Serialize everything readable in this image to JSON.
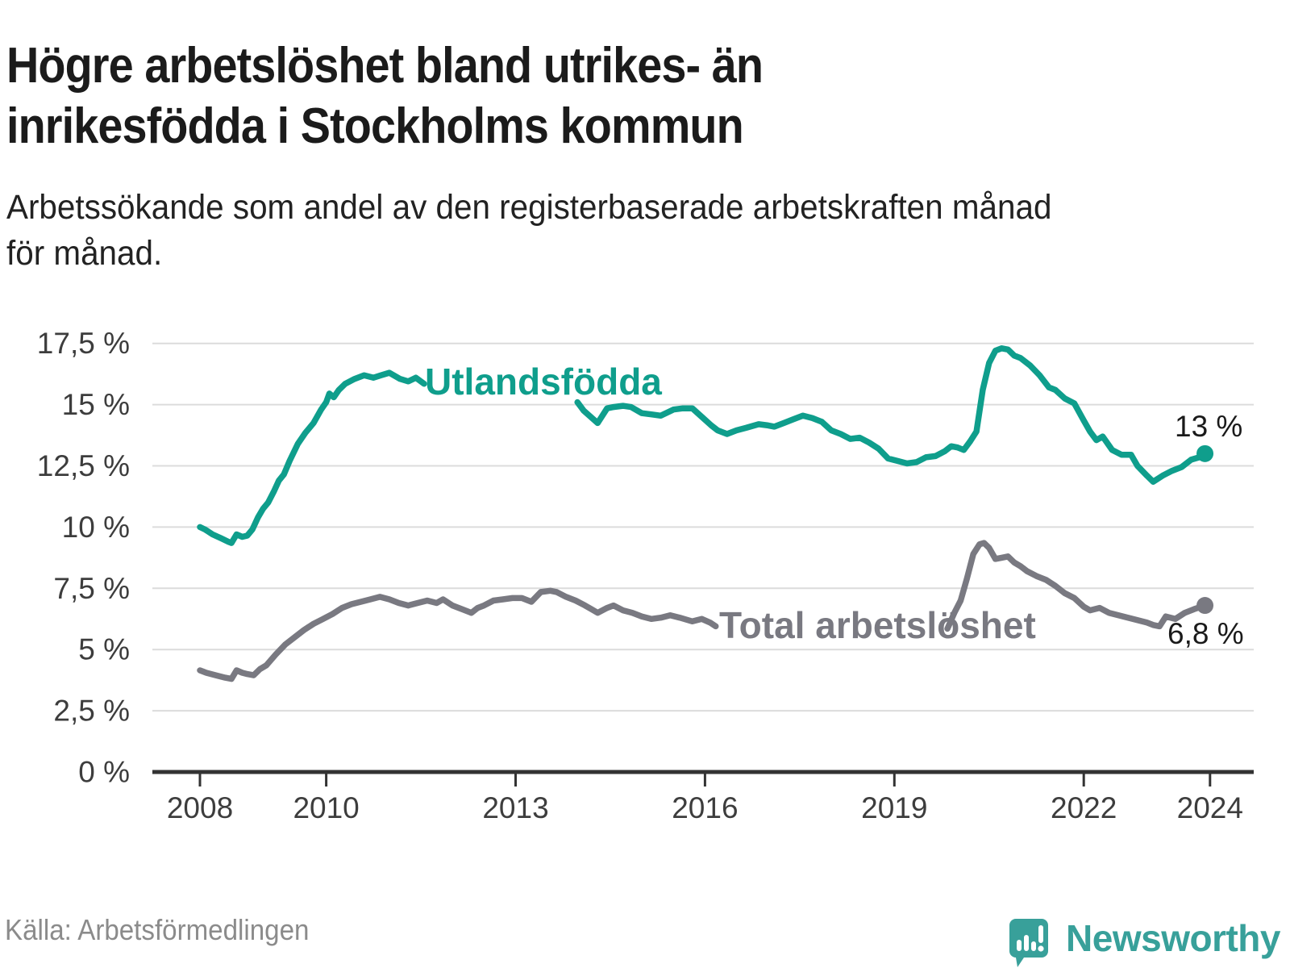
{
  "title": {
    "lines": [
      "Högre arbetslöshet bland utrikes- än",
      "inrikesfödda i Stockholms kommun"
    ]
  },
  "subtitle": {
    "lines": [
      "Arbetssökande som andel av den registerbaserade arbetskraften månad",
      "för månad."
    ]
  },
  "source": "Källa: Arbetsförmedlingen",
  "branding": {
    "logo_text": "Newsworthy",
    "logo_color": "#38a09a",
    "logo_icon": "speech-bubble-with-bar-chart-and-exclamation"
  },
  "chart_data": {
    "type": "line",
    "title": "Högre arbetslöshet bland utrikes- än inrikesfödda i Stockholms kommun",
    "xlabel": "",
    "ylabel": "",
    "grid": true,
    "x_axis": {
      "unit": "year",
      "ticks": [
        2008,
        2010,
        2013,
        2016,
        2019,
        2022,
        2024
      ],
      "range": [
        2007.25,
        2024.69
      ]
    },
    "y_axis": {
      "unit": "%",
      "tick_values": [
        0,
        2.5,
        5,
        7.5,
        10,
        12.5,
        15,
        17.5
      ],
      "tick_labels": [
        "0 %",
        "2,5 %",
        "5 %",
        "7,5 %",
        "10 %",
        "12,5 %",
        "15 %",
        "17,5 %"
      ],
      "range": [
        0,
        17.5
      ]
    },
    "colors": {
      "utlandsfodda": "#0f9e8c",
      "total": "#797981",
      "axis": "#333333",
      "grid_line": "#dcdcdc",
      "tick_label": "#3d3d3d",
      "end_label": "#1a1a1a"
    },
    "series": [
      {
        "name": "Utlandsfödda",
        "color": "#0f9e8c",
        "end_label": "13 %",
        "end_value": 13.0,
        "segments": [
          [
            [
              2008.0,
              10.0
            ],
            [
              2008.08,
              9.9
            ],
            [
              2008.2,
              9.7
            ],
            [
              2008.33,
              9.55
            ],
            [
              2008.45,
              9.4
            ],
            [
              2008.5,
              9.35
            ],
            [
              2008.58,
              9.7
            ],
            [
              2008.67,
              9.6
            ],
            [
              2008.75,
              9.65
            ],
            [
              2008.83,
              9.9
            ],
            [
              2008.92,
              10.4
            ],
            [
              2009.0,
              10.75
            ],
            [
              2009.08,
              11.0
            ],
            [
              2009.17,
              11.45
            ],
            [
              2009.25,
              11.9
            ],
            [
              2009.33,
              12.15
            ],
            [
              2009.42,
              12.7
            ],
            [
              2009.55,
              13.4
            ],
            [
              2009.67,
              13.85
            ],
            [
              2009.8,
              14.25
            ],
            [
              2009.92,
              14.8
            ],
            [
              2010.0,
              15.1
            ],
            [
              2010.05,
              15.45
            ],
            [
              2010.12,
              15.3
            ],
            [
              2010.2,
              15.6
            ],
            [
              2010.3,
              15.85
            ],
            [
              2010.45,
              16.05
            ],
            [
              2010.6,
              16.2
            ],
            [
              2010.75,
              16.1
            ],
            [
              2010.87,
              16.2
            ],
            [
              2011.0,
              16.3
            ],
            [
              2011.17,
              16.05
            ],
            [
              2011.3,
              15.95
            ],
            [
              2011.42,
              16.1
            ],
            [
              2011.55,
              15.85
            ]
          ],
          [
            [
              2013.98,
              15.1
            ],
            [
              2014.08,
              14.75
            ],
            [
              2014.3,
              14.25
            ],
            [
              2014.45,
              14.85
            ],
            [
              2014.55,
              14.9
            ],
            [
              2014.7,
              14.95
            ],
            [
              2014.83,
              14.9
            ],
            [
              2015.0,
              14.65
            ],
            [
              2015.15,
              14.6
            ],
            [
              2015.3,
              14.55
            ],
            [
              2015.5,
              14.8
            ],
            [
              2015.65,
              14.85
            ],
            [
              2015.8,
              14.85
            ],
            [
              2015.95,
              14.5
            ],
            [
              2016.1,
              14.15
            ],
            [
              2016.2,
              13.95
            ],
            [
              2016.35,
              13.8
            ],
            [
              2016.5,
              13.95
            ],
            [
              2016.65,
              14.05
            ],
            [
              2016.85,
              14.2
            ],
            [
              2017.0,
              14.15
            ],
            [
              2017.1,
              14.1
            ],
            [
              2017.25,
              14.25
            ],
            [
              2017.4,
              14.4
            ],
            [
              2017.55,
              14.55
            ],
            [
              2017.7,
              14.45
            ],
            [
              2017.85,
              14.3
            ],
            [
              2018.0,
              13.95
            ],
            [
              2018.15,
              13.8
            ],
            [
              2018.3,
              13.6
            ],
            [
              2018.45,
              13.65
            ],
            [
              2018.6,
              13.45
            ],
            [
              2018.75,
              13.2
            ],
            [
              2018.9,
              12.8
            ],
            [
              2019.05,
              12.7
            ],
            [
              2019.2,
              12.6
            ],
            [
              2019.35,
              12.65
            ],
            [
              2019.5,
              12.85
            ],
            [
              2019.65,
              12.9
            ],
            [
              2019.8,
              13.1
            ],
            [
              2019.9,
              13.3
            ],
            [
              2020.0,
              13.25
            ],
            [
              2020.1,
              13.15
            ],
            [
              2020.2,
              13.5
            ],
            [
              2020.3,
              13.9
            ],
            [
              2020.4,
              15.6
            ],
            [
              2020.5,
              16.7
            ],
            [
              2020.6,
              17.2
            ],
            [
              2020.7,
              17.3
            ],
            [
              2020.8,
              17.25
            ],
            [
              2020.9,
              17.0
            ],
            [
              2021.0,
              16.9
            ],
            [
              2021.15,
              16.6
            ],
            [
              2021.3,
              16.2
            ],
            [
              2021.45,
              15.7
            ],
            [
              2021.55,
              15.6
            ],
            [
              2021.7,
              15.25
            ],
            [
              2021.85,
              15.05
            ],
            [
              2022.0,
              14.35
            ],
            [
              2022.1,
              13.9
            ],
            [
              2022.2,
              13.55
            ],
            [
              2022.3,
              13.7
            ],
            [
              2022.45,
              13.15
            ],
            [
              2022.6,
              12.95
            ],
            [
              2022.75,
              12.95
            ],
            [
              2022.85,
              12.5
            ],
            [
              2023.0,
              12.1
            ],
            [
              2023.1,
              11.85
            ],
            [
              2023.25,
              12.1
            ],
            [
              2023.4,
              12.3
            ],
            [
              2023.55,
              12.45
            ],
            [
              2023.7,
              12.75
            ],
            [
              2023.83,
              12.85
            ],
            [
              2023.92,
              13.0
            ]
          ]
        ]
      },
      {
        "name": "Total arbetslöshet",
        "color": "#797981",
        "end_label": "6,8 %",
        "end_value": 6.8,
        "segments": [
          [
            [
              2008.0,
              4.15
            ],
            [
              2008.1,
              4.05
            ],
            [
              2008.25,
              3.95
            ],
            [
              2008.4,
              3.85
            ],
            [
              2008.5,
              3.8
            ],
            [
              2008.58,
              4.15
            ],
            [
              2008.67,
              4.05
            ],
            [
              2008.75,
              4.0
            ],
            [
              2008.85,
              3.95
            ],
            [
              2008.95,
              4.2
            ],
            [
              2009.05,
              4.35
            ],
            [
              2009.2,
              4.8
            ],
            [
              2009.35,
              5.2
            ],
            [
              2009.5,
              5.5
            ],
            [
              2009.65,
              5.8
            ],
            [
              2009.8,
              6.05
            ],
            [
              2009.95,
              6.25
            ],
            [
              2010.1,
              6.45
            ],
            [
              2010.25,
              6.7
            ],
            [
              2010.4,
              6.85
            ],
            [
              2010.55,
              6.95
            ],
            [
              2010.7,
              7.05
            ],
            [
              2010.85,
              7.15
            ],
            [
              2011.0,
              7.05
            ],
            [
              2011.15,
              6.9
            ],
            [
              2011.3,
              6.8
            ],
            [
              2011.45,
              6.9
            ],
            [
              2011.6,
              7.0
            ],
            [
              2011.75,
              6.9
            ],
            [
              2011.85,
              7.05
            ],
            [
              2012.0,
              6.8
            ],
            [
              2012.15,
              6.65
            ],
            [
              2012.3,
              6.5
            ],
            [
              2012.4,
              6.7
            ],
            [
              2012.5,
              6.8
            ],
            [
              2012.65,
              7.0
            ],
            [
              2012.8,
              7.05
            ],
            [
              2012.95,
              7.1
            ],
            [
              2013.1,
              7.1
            ],
            [
              2013.25,
              6.95
            ],
            [
              2013.4,
              7.35
            ],
            [
              2013.55,
              7.4
            ],
            [
              2013.65,
              7.35
            ],
            [
              2013.8,
              7.15
            ],
            [
              2013.95,
              7.0
            ],
            [
              2014.1,
              6.8
            ],
            [
              2014.2,
              6.65
            ],
            [
              2014.3,
              6.5
            ],
            [
              2014.45,
              6.7
            ],
            [
              2014.55,
              6.8
            ],
            [
              2014.7,
              6.6
            ],
            [
              2014.85,
              6.5
            ],
            [
              2015.0,
              6.35
            ],
            [
              2015.15,
              6.25
            ],
            [
              2015.3,
              6.3
            ],
            [
              2015.45,
              6.4
            ],
            [
              2015.6,
              6.3
            ],
            [
              2015.8,
              6.15
            ],
            [
              2015.95,
              6.25
            ],
            [
              2016.08,
              6.1
            ],
            [
              2016.17,
              5.95
            ]
          ],
          [
            [
              2019.84,
              5.85
            ],
            [
              2019.95,
              6.5
            ],
            [
              2020.05,
              7.0
            ],
            [
              2020.15,
              7.9
            ],
            [
              2020.25,
              8.9
            ],
            [
              2020.35,
              9.3
            ],
            [
              2020.42,
              9.35
            ],
            [
              2020.5,
              9.15
            ],
            [
              2020.6,
              8.7
            ],
            [
              2020.7,
              8.75
            ],
            [
              2020.8,
              8.8
            ],
            [
              2020.9,
              8.55
            ],
            [
              2021.0,
              8.4
            ],
            [
              2021.1,
              8.2
            ],
            [
              2021.25,
              8.0
            ],
            [
              2021.4,
              7.85
            ],
            [
              2021.55,
              7.6
            ],
            [
              2021.7,
              7.3
            ],
            [
              2021.85,
              7.1
            ],
            [
              2022.0,
              6.75
            ],
            [
              2022.1,
              6.6
            ],
            [
              2022.25,
              6.7
            ],
            [
              2022.4,
              6.5
            ],
            [
              2022.55,
              6.4
            ],
            [
              2022.7,
              6.3
            ],
            [
              2022.85,
              6.2
            ],
            [
              2023.0,
              6.1
            ],
            [
              2023.1,
              6.0
            ],
            [
              2023.2,
              5.95
            ],
            [
              2023.3,
              6.35
            ],
            [
              2023.45,
              6.25
            ],
            [
              2023.6,
              6.5
            ],
            [
              2023.75,
              6.65
            ],
            [
              2023.92,
              6.8
            ]
          ]
        ]
      }
    ]
  }
}
